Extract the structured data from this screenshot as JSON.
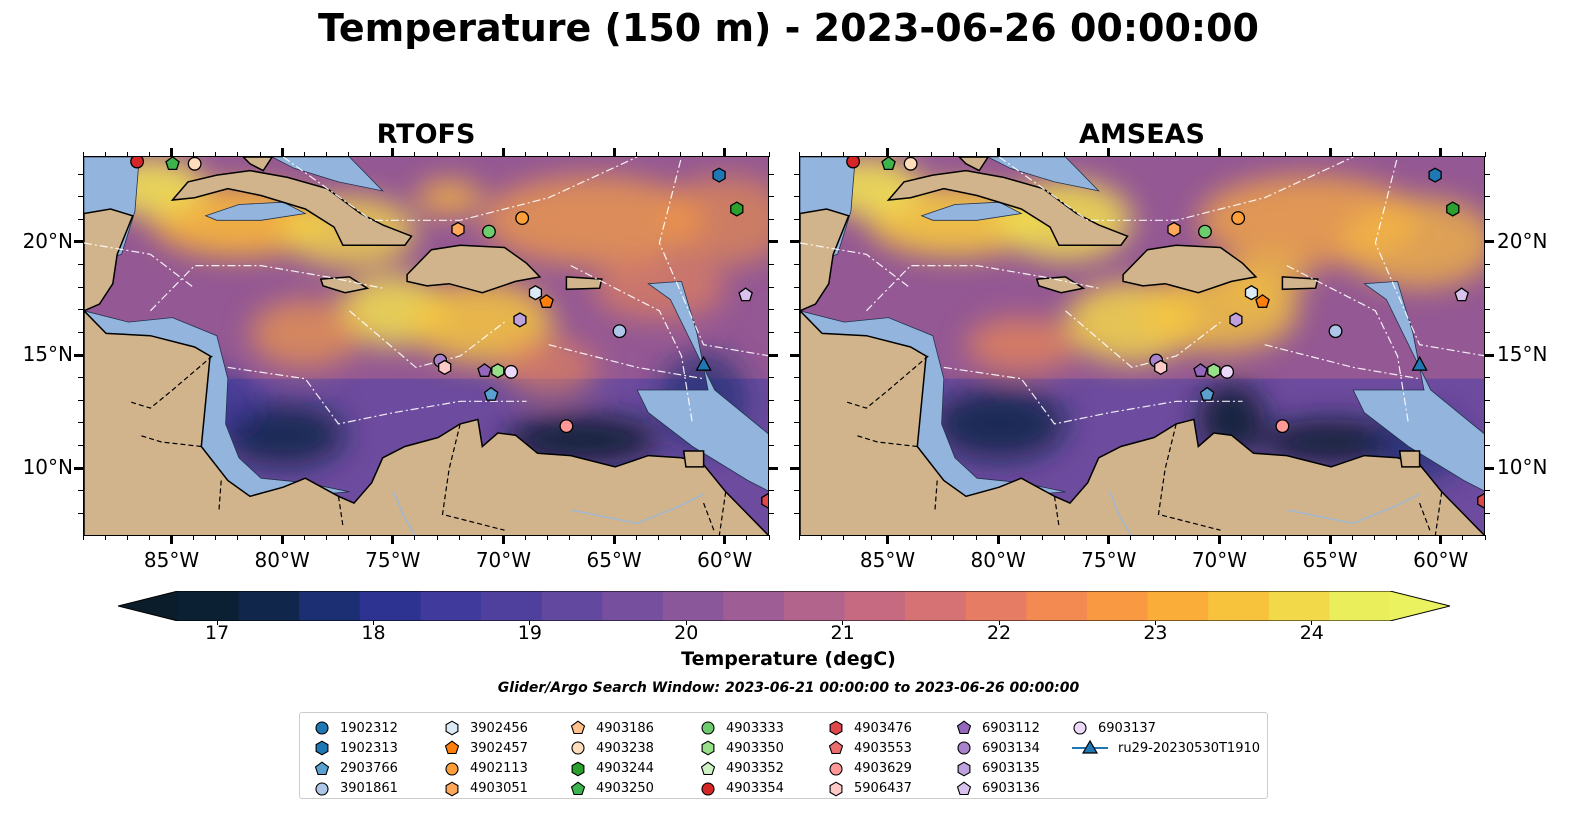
{
  "suptitle": "Temperature (150 m) - 2023-06-26 00:00:00",
  "panels": [
    {
      "title": "RTOFS"
    },
    {
      "title": "AMSEAS"
    }
  ],
  "axes": {
    "x_ticks": [
      "85°W",
      "80°W",
      "75°W",
      "70°W",
      "65°W",
      "60°W"
    ],
    "x_values": [
      -85,
      -80,
      -75,
      -70,
      -65,
      -60
    ],
    "y_ticks": [
      "20°N",
      "15°N",
      "10°N"
    ],
    "y_values": [
      20,
      15,
      10
    ],
    "lon_range": [
      -89,
      -58
    ],
    "lat_range": [
      7,
      23.8
    ]
  },
  "colorbar": {
    "label": "Temperature (degC)",
    "ticks": [
      "17",
      "18",
      "19",
      "20",
      "21",
      "22",
      "23",
      "24"
    ],
    "tick_values": [
      17,
      18,
      19,
      20,
      21,
      22,
      23,
      24
    ],
    "range": [
      16.75,
      24.5
    ],
    "colors": [
      "#0c2033",
      "#10264b",
      "#1c2f73",
      "#2c3391",
      "#3f3a9b",
      "#50409e",
      "#63489f",
      "#764f9e",
      "#8a579b",
      "#9e5e95",
      "#b3648d",
      "#c66a82",
      "#d77274",
      "#e67c63",
      "#f28a52",
      "#f99a43",
      "#fbad3a",
      "#f8c33c",
      "#f1d94a",
      "#eaee5b"
    ],
    "over_color": "#eaf25f",
    "under_color": "#0b1d2b",
    "cmap": "thermal"
  },
  "search_window": "Glider/Argo Search Window: 2023-06-21 00:00:00 to 2023-06-26 00:00:00",
  "legend": [
    {
      "name": "1902312",
      "marker": "circle",
      "color": "#1f77b4"
    },
    {
      "name": "1902313",
      "marker": "hexagon",
      "color": "#1f77b4"
    },
    {
      "name": "2903766",
      "marker": "pentagon",
      "color": "#5aa0d0"
    },
    {
      "name": "3901861",
      "marker": "circle",
      "color": "#aec7e8"
    },
    {
      "name": "3902456",
      "marker": "hexagon",
      "color": "#dbeaf7"
    },
    {
      "name": "3902457",
      "marker": "pentagon",
      "color": "#ff7f0e"
    },
    {
      "name": "4902113",
      "marker": "circle",
      "color": "#ff9f3a"
    },
    {
      "name": "4903051",
      "marker": "hexagon",
      "color": "#ffa75a"
    },
    {
      "name": "4903186",
      "marker": "pentagon",
      "color": "#ffc08a"
    },
    {
      "name": "4903238",
      "marker": "circle",
      "color": "#ffdcbb"
    },
    {
      "name": "4903244",
      "marker": "hexagon",
      "color": "#2ca02c"
    },
    {
      "name": "4903250",
      "marker": "pentagon",
      "color": "#3cb44b"
    },
    {
      "name": "4903333",
      "marker": "circle",
      "color": "#6dcc6d"
    },
    {
      "name": "4903350",
      "marker": "hexagon",
      "color": "#98df8a"
    },
    {
      "name": "4903352",
      "marker": "pentagon",
      "color": "#cdf1c4"
    },
    {
      "name": "4903354",
      "marker": "circle",
      "color": "#d62728"
    },
    {
      "name": "4903476",
      "marker": "hexagon",
      "color": "#e0474a"
    },
    {
      "name": "4903553",
      "marker": "pentagon",
      "color": "#ec6d6d"
    },
    {
      "name": "4903629",
      "marker": "circle",
      "color": "#ff9896"
    },
    {
      "name": "5906437",
      "marker": "hexagon",
      "color": "#ffc9c7"
    },
    {
      "name": "6903112",
      "marker": "pentagon",
      "color": "#9467bd"
    },
    {
      "name": "6903134",
      "marker": "circle",
      "color": "#a883cc"
    },
    {
      "name": "6903135",
      "marker": "hexagon",
      "color": "#bfa2dd"
    },
    {
      "name": "6903136",
      "marker": "pentagon",
      "color": "#d9c2ee"
    },
    {
      "name": "6903137",
      "marker": "circle",
      "color": "#ecd8fb"
    },
    {
      "name": "ru29-20230530T1910",
      "marker": "triangle",
      "color": "#1f77b4",
      "line": true
    }
  ],
  "markers": [
    {
      "id": "4903354",
      "lon": -86.6,
      "lat": 23.6
    },
    {
      "id": "4903250",
      "lon": -85.0,
      "lat": 23.5
    },
    {
      "id": "4903238",
      "lon": -84.0,
      "lat": 23.5
    },
    {
      "id": "1902313",
      "lon": -60.3,
      "lat": 23.0
    },
    {
      "id": "4903244",
      "lon": -59.5,
      "lat": 21.5
    },
    {
      "id": "4902113",
      "lon": -69.2,
      "lat": 21.1
    },
    {
      "id": "4903051",
      "lon": -72.1,
      "lat": 20.6
    },
    {
      "id": "4903333",
      "lon": -70.7,
      "lat": 20.5
    },
    {
      "id": "3902456",
      "lon": -68.6,
      "lat": 17.8
    },
    {
      "id": "3902457",
      "lon": -68.1,
      "lat": 17.4
    },
    {
      "id": "6903136",
      "lon": -59.1,
      "lat": 17.7
    },
    {
      "id": "6903135",
      "lon": -69.3,
      "lat": 16.6
    },
    {
      "id": "3901861",
      "lon": -64.8,
      "lat": 16.1
    },
    {
      "id": "6903134",
      "lon": -72.9,
      "lat": 14.8
    },
    {
      "id": "5906437",
      "lon": -72.7,
      "lat": 14.5
    },
    {
      "id": "6903112",
      "lon": -70.9,
      "lat": 14.35
    },
    {
      "id": "4903350",
      "lon": -70.3,
      "lat": 14.35
    },
    {
      "id": "6903137",
      "lon": -69.7,
      "lat": 14.3
    },
    {
      "id": "2903766",
      "lon": -70.6,
      "lat": 13.3
    },
    {
      "id": "4903629",
      "lon": -67.2,
      "lat": 11.9
    },
    {
      "id": "4903476",
      "lon": -58.1,
      "lat": 8.6
    }
  ],
  "glider": {
    "id": "ru29-20230530T1910",
    "lon": -61.0,
    "lat": 14.6
  }
}
